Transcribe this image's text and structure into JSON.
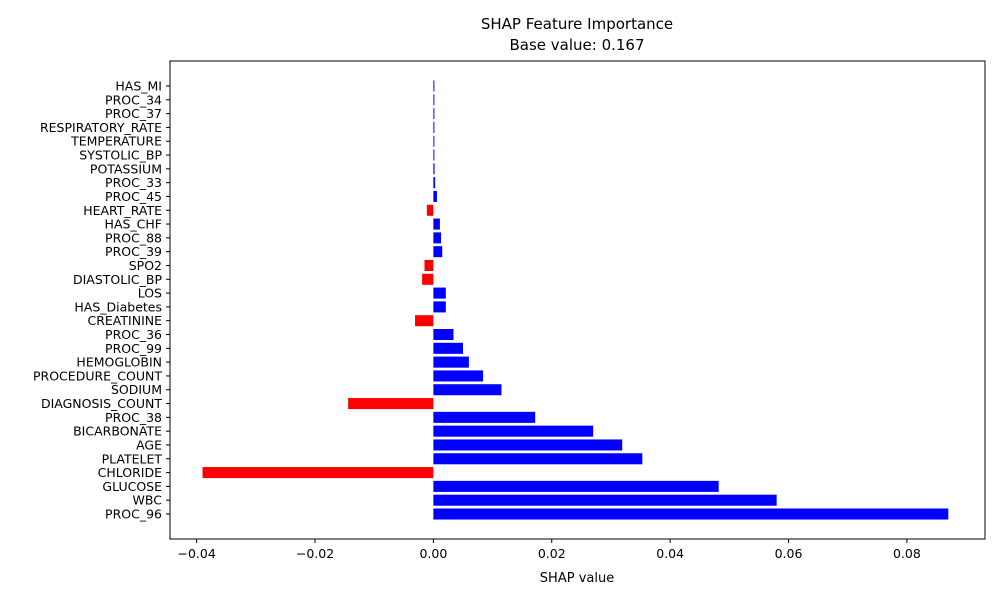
{
  "chart_data": {
    "type": "bar",
    "orientation": "horizontal",
    "title": "SHAP Feature Importance",
    "subtitle": "Base value: 0.167",
    "xlabel": "SHAP value",
    "ylabel": "",
    "xlim": [
      -0.0445,
      0.0932
    ],
    "xticks": [
      -0.04,
      -0.02,
      0.0,
      0.02,
      0.04,
      0.06,
      0.08
    ],
    "xtick_labels": [
      "−0.04",
      "−0.02",
      "0.00",
      "0.02",
      "0.04",
      "0.06",
      "0.08"
    ],
    "positive_color": "#0000ff",
    "negative_color": "#ff0000",
    "grid": false,
    "legend": "none",
    "categories": [
      "PROC_96",
      "WBC",
      "GLUCOSE",
      "CHLORIDE",
      "PLATELET",
      "AGE",
      "BICARBONATE",
      "PROC_38",
      "DIAGNOSIS_COUNT",
      "SODIUM",
      "PROCEDURE_COUNT",
      "HEMOGLOBIN",
      "PROC_99",
      "PROC_36",
      "CREATININE",
      "HAS_Diabetes",
      "LOS",
      "DIASTOLIC_BP",
      "SPO2",
      "PROC_39",
      "PROC_88",
      "HAS_CHF",
      "HEART_RATE",
      "PROC_45",
      "PROC_33",
      "POTASSIUM",
      "SYSTOLIC_BP",
      "TEMPERATURE",
      "RESPIRATORY_RATE",
      "PROC_37",
      "PROC_34",
      "HAS_MI"
    ],
    "values": [
      0.087,
      0.058,
      0.0482,
      -0.039,
      0.0353,
      0.0319,
      0.027,
      0.0172,
      -0.0144,
      0.0115,
      0.0084,
      0.006,
      0.005,
      0.0034,
      -0.0031,
      0.0021,
      0.0021,
      -0.0019,
      -0.0015,
      0.0015,
      0.0013,
      0.0011,
      -0.0011,
      0.0006,
      0.0003,
      0.0002,
      0.0001,
      0.0001,
      0.0001,
      0.0001,
      0.0001,
      0.0001
    ]
  }
}
